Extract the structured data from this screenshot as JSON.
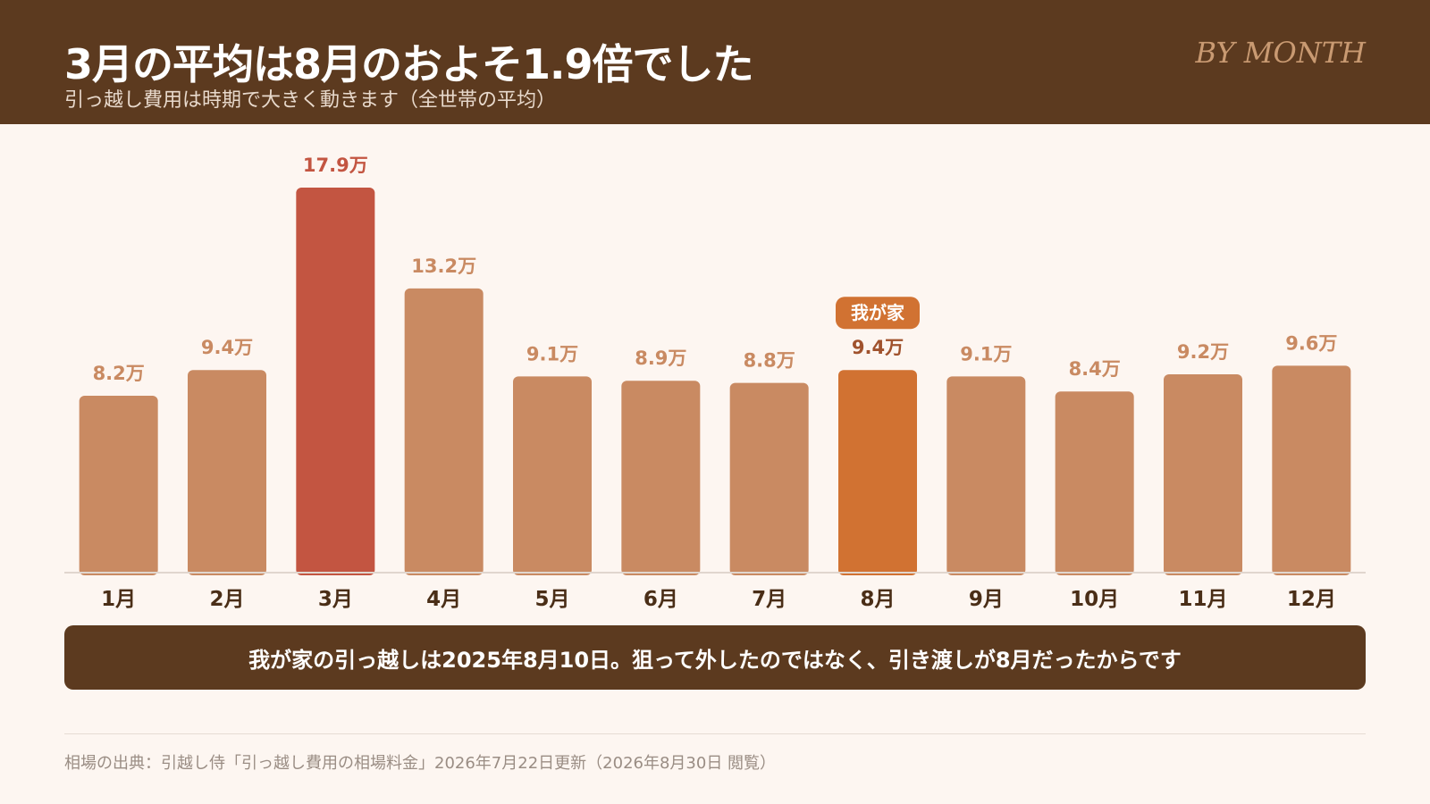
{
  "header": {
    "title": "3月の平均は8月のおよそ1.9倍でした",
    "subtitle": "引っ越し費用は時期で大きく動きます（全世帯の平均）",
    "eyebrow": "BY MONTH"
  },
  "chart_data": {
    "type": "bar",
    "categories": [
      "1月",
      "2月",
      "3月",
      "4月",
      "5月",
      "6月",
      "7月",
      "8月",
      "9月",
      "10月",
      "11月",
      "12月"
    ],
    "values": [
      8.2,
      9.4,
      17.9,
      13.2,
      9.1,
      8.9,
      8.8,
      9.4,
      9.1,
      8.4,
      9.2,
      9.6
    ],
    "value_labels": [
      "8.2万",
      "9.4万",
      "17.9万",
      "13.2万",
      "9.1万",
      "8.9万",
      "8.8万",
      "9.4万",
      "9.1万",
      "8.4万",
      "9.2万",
      "9.6万"
    ],
    "unit": "万",
    "highlight_max_index": 2,
    "highlight_own_index": 7,
    "own_badge": "我が家",
    "ylim": [
      0,
      17.9
    ],
    "grid": false,
    "colors": {
      "default": "#c98a62",
      "max": "#c35541",
      "own": "#d17232",
      "default_label": "#c98a62",
      "max_label": "#c35541",
      "own_label": "#a0522d",
      "axis": "#e0d6ce",
      "tick_label": "#4a2e17"
    }
  },
  "callout": {
    "text": "我が家の引っ越しは2025年8月10日。狙って外したのではなく、引き渡しが8月だったからです"
  },
  "footer": {
    "source": "相場の出典：引越し侍「引っ越し費用の相場料金」2026年7月22日更新（2026年8月30日 閲覧）"
  },
  "colors": {
    "header_bg": "#5c3a1f",
    "page_bg": "#fdf6f1",
    "eyebrow": "#c99a72"
  }
}
